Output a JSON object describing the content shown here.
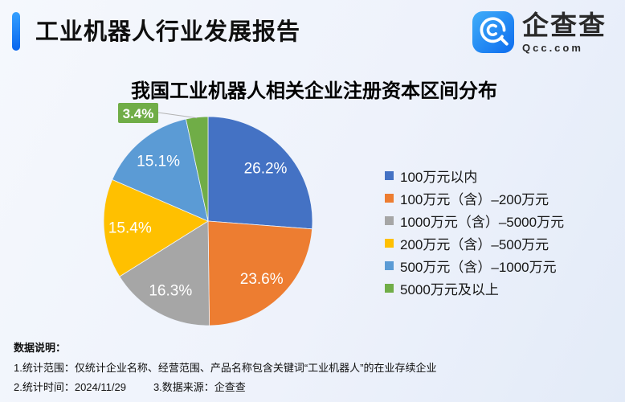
{
  "page": {
    "background": "#eef2fb"
  },
  "header": {
    "title": "工业机器人行业发展报告",
    "accent_color": "#1479f2"
  },
  "logo": {
    "icon": "qcc-magnifier-icon",
    "name": "企查查",
    "domain": "Qcc.com",
    "icon_color": "#1e86f5"
  },
  "chart_data": {
    "type": "pie",
    "title": "我国工业机器人相关企业注册资本区间分布",
    "value_unit": "percent",
    "label_format": "{value}%",
    "legend_position": "right",
    "start_angle_deg": 0,
    "direction": "clockwise",
    "slices": [
      {
        "label": "100万元以内",
        "value": 26.2,
        "color": "#4472C4"
      },
      {
        "label": "100万元（含）–200万元",
        "value": 23.6,
        "color": "#ED7D31"
      },
      {
        "label": "1000万元（含）–5000万元",
        "value": 16.3,
        "color": "#A6A6A6"
      },
      {
        "label": "200万元（含）–500万元",
        "value": 15.4,
        "color": "#FFC000"
      },
      {
        "label": "500万元（含）–1000万元",
        "value": 15.1,
        "color": "#5B9BD5"
      },
      {
        "label": "5000万元及以上",
        "value": 3.4,
        "color": "#70AD47"
      }
    ]
  },
  "notes": {
    "heading": "数据说明：",
    "scope": "1.统计范围：仅统计企业名称、经营范围、产品名称包含关键词“工业机器人”的在业存续企业",
    "time": "2.统计时间：2024/11/29",
    "source": "3.数据来源：企查查"
  }
}
